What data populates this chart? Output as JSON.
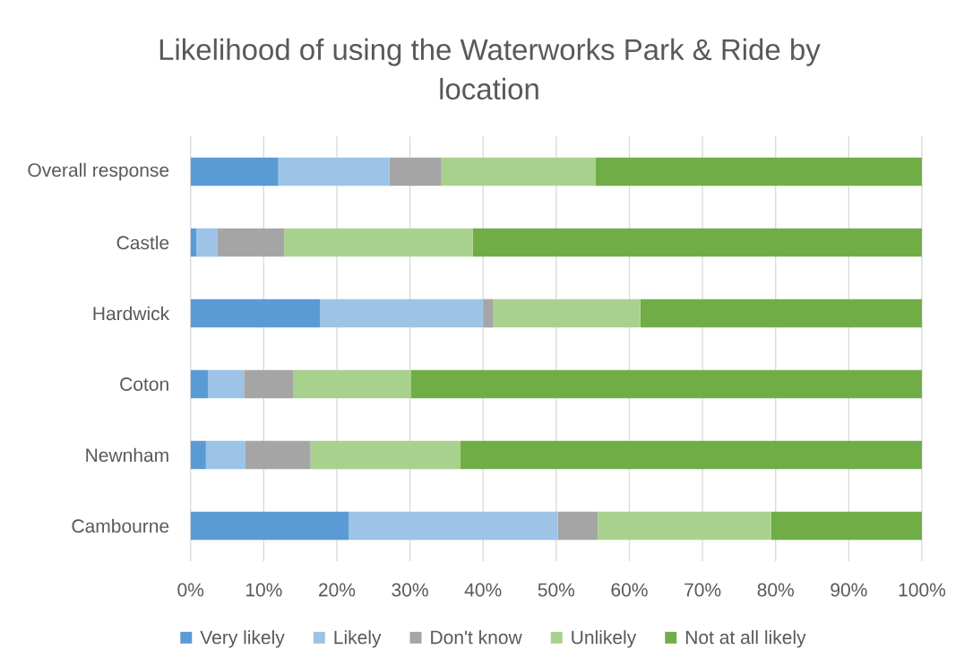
{
  "chart_data": {
    "type": "bar",
    "title": "Likelihood of using the Waterworks Park & Ride by location",
    "categories": [
      "Overall response",
      "Castle",
      "Hardwick",
      "Coton",
      "Newnham",
      "Cambourne"
    ],
    "orientation": "horizontal",
    "stacked": true,
    "series": [
      {
        "name": "Very likely",
        "color": "#5b9bd5",
        "values": [
          12.0,
          0.8,
          17.7,
          2.4,
          2.1,
          21.6
        ]
      },
      {
        "name": "Likely",
        "color": "#9dc3e6",
        "values": [
          15.2,
          2.9,
          22.3,
          4.9,
          5.4,
          28.6
        ]
      },
      {
        "name": "Don't know",
        "color": "#a5a5a5",
        "values": [
          7.1,
          9.1,
          1.4,
          6.7,
          8.9,
          5.5
        ]
      },
      {
        "name": "Unlikely",
        "color": "#a9d18e",
        "values": [
          21.1,
          25.8,
          20.1,
          16.1,
          20.5,
          23.7
        ]
      },
      {
        "name": "Not at all likely",
        "color": "#70ad47",
        "values": [
          44.6,
          61.4,
          38.5,
          69.9,
          63.1,
          20.6
        ]
      }
    ],
    "xlim": [
      0,
      100
    ],
    "xticks": [
      {
        "value": 0,
        "label": "0%"
      },
      {
        "value": 10,
        "label": "10%"
      },
      {
        "value": 20,
        "label": "20%"
      },
      {
        "value": 30,
        "label": "30%"
      },
      {
        "value": 40,
        "label": "40%"
      },
      {
        "value": 50,
        "label": "50%"
      },
      {
        "value": 60,
        "label": "60%"
      },
      {
        "value": 70,
        "label": "70%"
      },
      {
        "value": 80,
        "label": "80%"
      },
      {
        "value": 90,
        "label": "90%"
      },
      {
        "value": 100,
        "label": "100%"
      }
    ],
    "grid": "x",
    "legend": "bottom"
  }
}
